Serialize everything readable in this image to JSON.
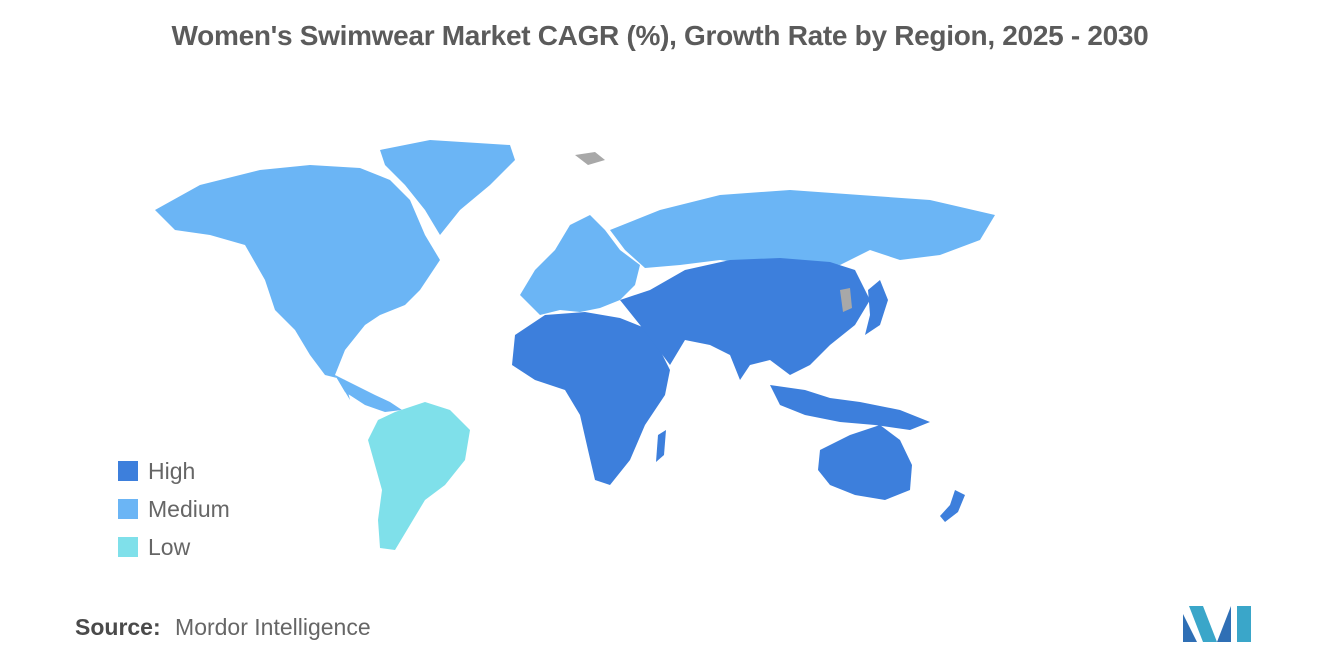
{
  "title": "Women's Swimwear Market CAGR (%), Growth Rate by Region, 2025 - 2030",
  "legend": [
    {
      "label": "High",
      "color": "#3d7fdc"
    },
    {
      "label": "Medium",
      "color": "#6bb5f5"
    },
    {
      "label": "Low",
      "color": "#7fe0ea"
    }
  ],
  "no_data_color": "#a8a8a8",
  "regions": [
    {
      "region": "North America",
      "level": "Medium"
    },
    {
      "region": "Europe",
      "level": "Medium"
    },
    {
      "region": "South America",
      "level": "Low"
    },
    {
      "region": "Asia-Pacific",
      "level": "High"
    },
    {
      "region": "Middle East and Africa",
      "level": "High"
    }
  ],
  "source": {
    "label": "Source:",
    "value": "Mordor Intelligence"
  },
  "logo_icon": "mordor-intelligence-logo-icon"
}
